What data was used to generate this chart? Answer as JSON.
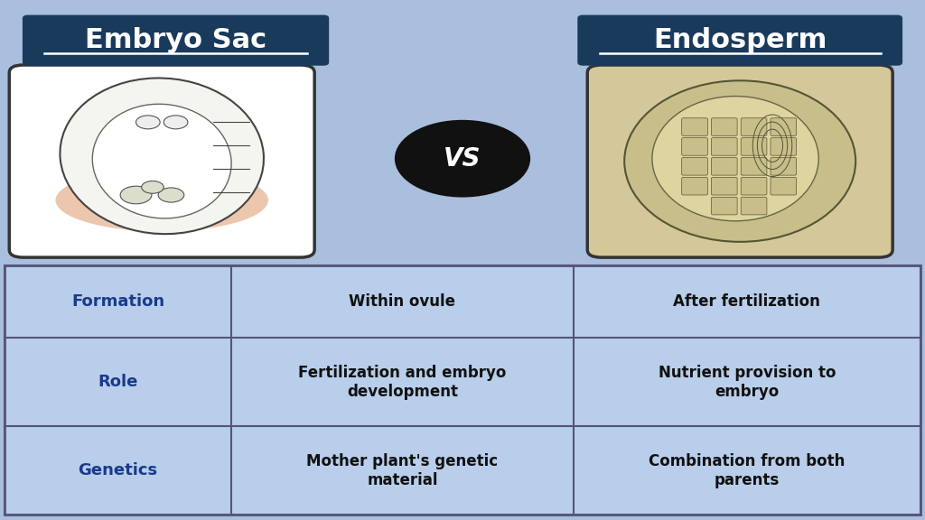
{
  "bg_color": "#aabfdd",
  "title_left": "Embryo Sac",
  "title_right": "Endosperm",
  "title_bg_color": "#1a3a5c",
  "title_text_color": "#ffffff",
  "vs_text": "VS",
  "vs_bg_color": "#111111",
  "vs_text_color": "#ffffff",
  "table_border_color": "#555577",
  "table_bg_color": "#b8ceea",
  "row_labels": [
    "Formation",
    "Role",
    "Genetics"
  ],
  "row_label_color": "#1a3a8c",
  "col1_values": [
    "Within ovule",
    "Fertilization and embryo\ndevelopment",
    "Mother plant's genetic\nmaterial"
  ],
  "col2_values": [
    "After fertilization",
    "Nutrient provision to\nembryo",
    "Combination from both\nparents"
  ],
  "cell_text_color": "#111111",
  "label_fontsize": 13,
  "cell_fontsize": 12,
  "title_fontsize": 22
}
